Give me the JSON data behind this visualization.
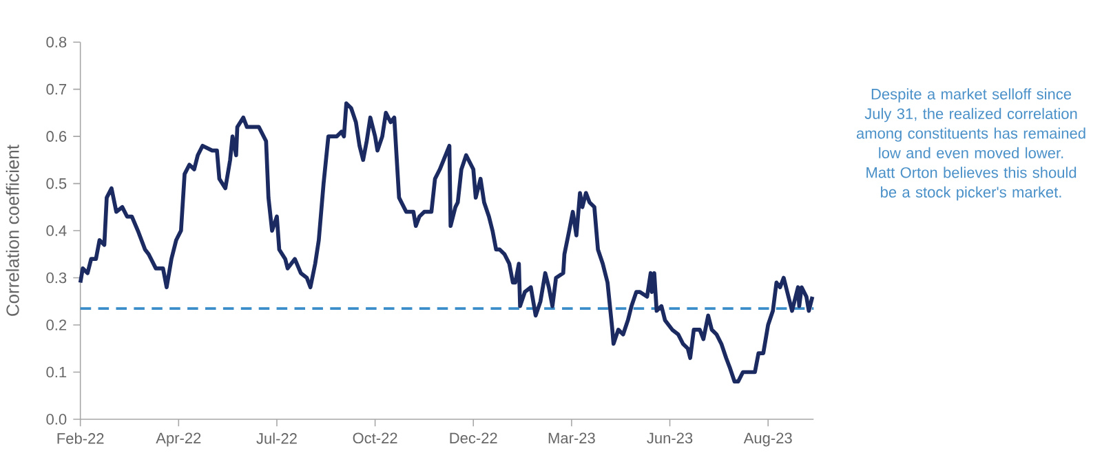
{
  "chart_data": {
    "type": "line",
    "ylabel": "Correlation coefficient",
    "xlim": [
      "2022-02-01",
      "2023-10-06"
    ],
    "xticks": [
      {
        "value": "2022-02-01",
        "label": "Feb-22"
      },
      {
        "value": "2022-04-24",
        "label": "Apr-22"
      },
      {
        "value": "2022-07-15",
        "label": "Jul-22"
      },
      {
        "value": "2022-10-05",
        "label": "Oct-22"
      },
      {
        "value": "2022-12-26",
        "label": "Dec-22"
      },
      {
        "value": "2023-03-18",
        "label": "Mar-23"
      },
      {
        "value": "2023-06-08",
        "label": "Jun-23"
      },
      {
        "value": "2023-08-29",
        "label": "Aug-23"
      }
    ],
    "ylim": [
      0,
      0.8
    ],
    "yticks": [
      {
        "value": 0,
        "label": "0.0"
      },
      0.1,
      0.2,
      0.3,
      0.4,
      0.5,
      0.6,
      0.7,
      0.8
    ],
    "grid": false,
    "marker": "none",
    "line_style": "solid",
    "series": [
      {
        "color": "#1b2a60",
        "x": [
          "2022-02-01",
          "2022-02-03",
          "2022-02-07",
          "2022-02-10",
          "2022-02-14",
          "2022-02-17",
          "2022-02-21",
          "2022-02-23",
          "2022-02-27",
          "2022-03-03",
          "2022-03-08",
          "2022-03-12",
          "2022-03-16",
          "2022-03-21",
          "2022-03-27",
          "2022-03-30",
          "2022-04-05",
          "2022-04-11",
          "2022-04-14",
          "2022-04-18",
          "2022-04-22",
          "2022-04-26",
          "2022-04-29",
          "2022-05-03",
          "2022-05-07",
          "2022-05-10",
          "2022-05-14",
          "2022-05-22",
          "2022-05-26",
          "2022-05-28",
          "2022-06-02",
          "2022-06-06",
          "2022-06-08",
          "2022-06-11",
          "2022-06-12",
          "2022-06-17",
          "2022-06-20",
          "2022-06-30",
          "2022-07-06",
          "2022-07-08",
          "2022-07-11",
          "2022-07-15",
          "2022-07-17",
          "2022-07-22",
          "2022-07-24",
          "2022-07-30",
          "2022-08-04",
          "2022-08-09",
          "2022-08-12",
          "2022-08-16",
          "2022-08-19",
          "2022-08-23",
          "2022-08-27",
          "2022-09-03",
          "2022-09-07",
          "2022-09-09",
          "2022-09-11",
          "2022-09-15",
          "2022-09-19",
          "2022-09-22",
          "2022-09-25",
          "2022-09-28",
          "2022-10-01",
          "2022-10-05",
          "2022-10-07",
          "2022-10-11",
          "2022-10-14",
          "2022-10-18",
          "2022-10-21",
          "2022-10-25",
          "2022-10-31",
          "2022-11-06",
          "2022-11-08",
          "2022-11-11",
          "2022-11-15",
          "2022-11-21",
          "2022-11-24",
          "2022-11-28",
          "2022-12-06",
          "2022-12-07",
          "2022-12-11",
          "2022-12-13",
          "2022-12-16",
          "2022-12-20",
          "2022-12-26",
          "2022-12-28",
          "2023-01-01",
          "2023-01-04",
          "2023-01-08",
          "2023-01-11",
          "2023-01-14",
          "2023-01-17",
          "2023-01-21",
          "2023-01-25",
          "2023-01-28",
          "2023-01-30",
          "2023-02-02",
          "2023-02-03",
          "2023-02-07",
          "2023-02-12",
          "2023-02-16",
          "2023-02-20",
          "2023-02-24",
          "2023-02-27",
          "2023-03-02",
          "2023-03-05",
          "2023-03-11",
          "2023-03-12",
          "2023-03-16",
          "2023-03-19",
          "2023-03-22",
          "2023-03-25",
          "2023-03-27",
          "2023-03-30",
          "2023-04-02",
          "2023-04-06",
          "2023-04-09",
          "2023-04-13",
          "2023-04-17",
          "2023-04-21",
          "2023-04-22",
          "2023-04-26",
          "2023-04-30",
          "2023-05-04",
          "2023-05-07",
          "2023-05-11",
          "2023-05-14",
          "2023-05-20",
          "2023-05-23",
          "2023-05-24",
          "2023-05-26",
          "2023-05-28",
          "2023-06-01",
          "2023-06-04",
          "2023-06-10",
          "2023-06-15",
          "2023-06-19",
          "2023-06-23",
          "2023-06-25",
          "2023-06-28",
          "2023-07-03",
          "2023-07-06",
          "2023-07-10",
          "2023-07-13",
          "2023-07-17",
          "2023-07-21",
          "2023-07-25",
          "2023-07-28",
          "2023-08-01",
          "2023-08-04",
          "2023-08-08",
          "2023-08-12",
          "2023-08-14",
          "2023-08-18",
          "2023-08-21",
          "2023-08-25",
          "2023-08-29",
          "2023-09-02",
          "2023-09-05",
          "2023-09-08",
          "2023-09-11",
          "2023-09-14",
          "2023-09-18",
          "2023-09-23",
          "2023-09-24",
          "2023-09-26",
          "2023-09-30",
          "2023-10-02",
          "2023-10-05"
        ],
        "values": [
          0.29,
          0.32,
          0.31,
          0.34,
          0.34,
          0.38,
          0.37,
          0.47,
          0.49,
          0.44,
          0.45,
          0.43,
          0.43,
          0.4,
          0.36,
          0.35,
          0.32,
          0.32,
          0.28,
          0.34,
          0.38,
          0.4,
          0.52,
          0.54,
          0.53,
          0.56,
          0.58,
          0.57,
          0.57,
          0.51,
          0.49,
          0.55,
          0.6,
          0.56,
          0.62,
          0.64,
          0.62,
          0.62,
          0.59,
          0.47,
          0.4,
          0.43,
          0.36,
          0.34,
          0.32,
          0.34,
          0.31,
          0.3,
          0.28,
          0.33,
          0.38,
          0.5,
          0.6,
          0.6,
          0.61,
          0.6,
          0.67,
          0.66,
          0.63,
          0.58,
          0.55,
          0.59,
          0.64,
          0.6,
          0.57,
          0.6,
          0.65,
          0.63,
          0.64,
          0.47,
          0.44,
          0.44,
          0.41,
          0.43,
          0.44,
          0.44,
          0.51,
          0.53,
          0.58,
          0.41,
          0.45,
          0.46,
          0.53,
          0.56,
          0.53,
          0.47,
          0.51,
          0.46,
          0.43,
          0.4,
          0.36,
          0.36,
          0.35,
          0.33,
          0.29,
          0.29,
          0.33,
          0.24,
          0.27,
          0.28,
          0.22,
          0.25,
          0.31,
          0.28,
          0.24,
          0.3,
          0.31,
          0.35,
          0.4,
          0.44,
          0.39,
          0.48,
          0.45,
          0.48,
          0.46,
          0.45,
          0.36,
          0.33,
          0.29,
          0.19,
          0.16,
          0.19,
          0.18,
          0.21,
          0.24,
          0.27,
          0.27,
          0.26,
          0.31,
          0.27,
          0.31,
          0.23,
          0.24,
          0.21,
          0.19,
          0.18,
          0.16,
          0.15,
          0.13,
          0.19,
          0.19,
          0.17,
          0.22,
          0.19,
          0.18,
          0.16,
          0.13,
          0.11,
          0.08,
          0.08,
          0.1,
          0.1,
          0.1,
          0.1,
          0.14,
          0.14,
          0.2,
          0.23,
          0.29,
          0.28,
          0.3,
          0.27,
          0.23,
          0.28,
          0.24,
          0.28,
          0.26,
          0.23,
          0.26
        ]
      }
    ],
    "ref_lines": [
      {
        "axis": "y",
        "value": 0.235,
        "color": "#3a8dc8",
        "line_style": "dashed"
      }
    ],
    "annotations": [
      "Despite a market selloff since July 31, the realized correlation among constituents has remained low and even moved lower. Matt Orton believes this should be a stock picker's market."
    ]
  }
}
